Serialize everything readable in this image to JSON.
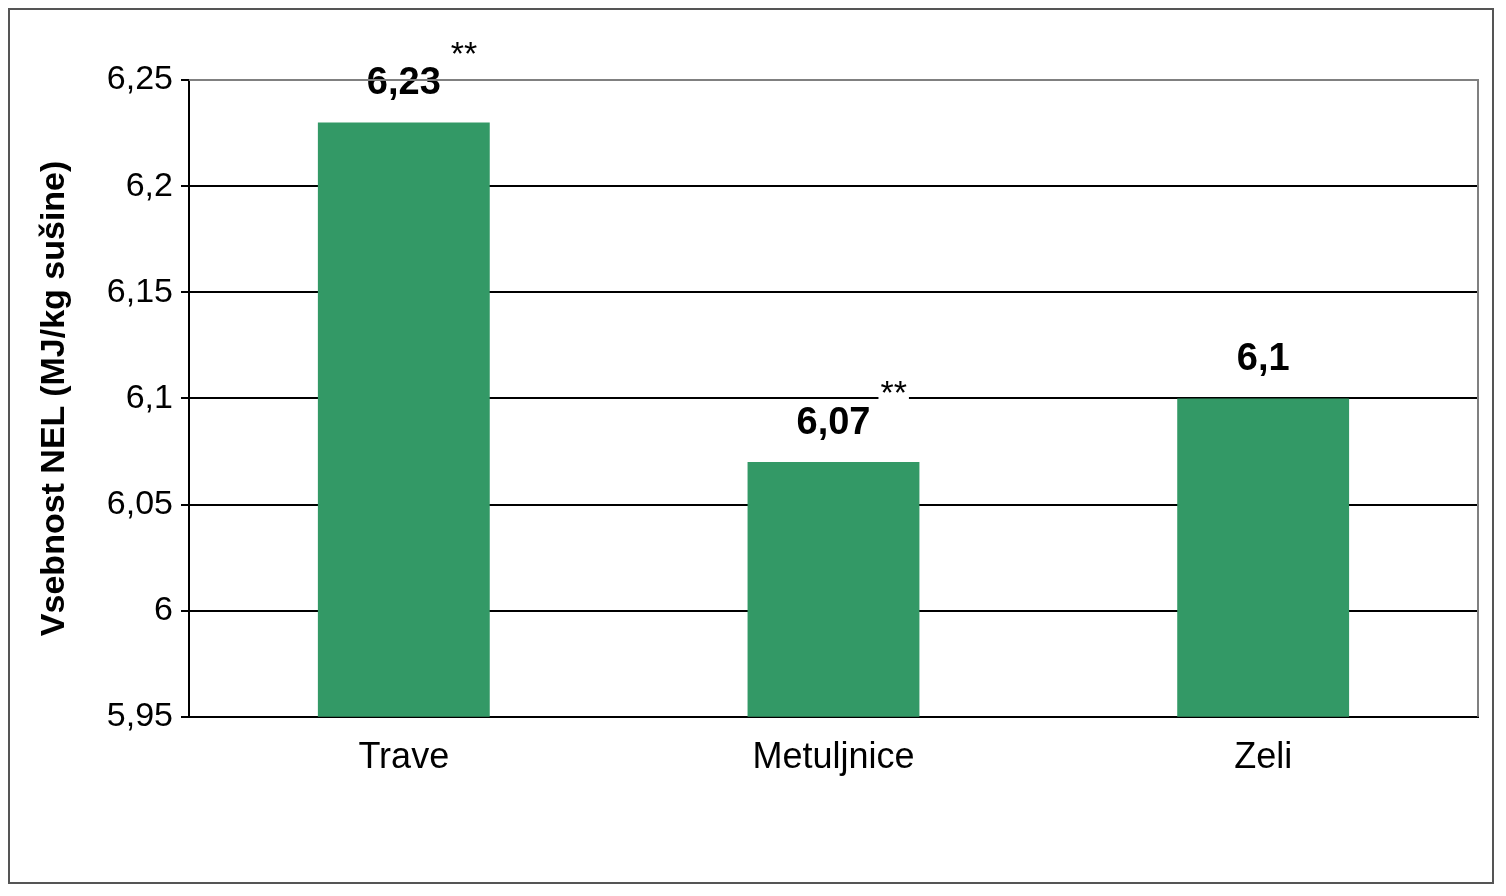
{
  "chart_data": {
    "type": "bar",
    "ylabel": "Vsebnost NEL (MJ/kg sušine)",
    "categories": [
      "Trave",
      "Metuljnice",
      "Zeli"
    ],
    "values": [
      6.23,
      6.07,
      6.1
    ],
    "color": "#339966",
    "value_labels": [
      "6,23",
      "6,07",
      "6,1"
    ],
    "ylim": [
      5.95,
      6.25
    ],
    "yticks": [
      {
        "value": 5.95,
        "label": "5,95"
      },
      {
        "value": 6,
        "label": "6"
      },
      {
        "value": 6.05,
        "label": "6,05"
      },
      {
        "value": 6.1,
        "label": "6,1"
      },
      {
        "value": 6.15,
        "label": "6,15"
      },
      {
        "value": 6.2,
        "label": "6,2"
      },
      {
        "value": 6.25,
        "label": "6,25"
      }
    ],
    "annotations": [
      {
        "text": "**",
        "x": "Trave",
        "y": 6.23
      },
      {
        "text": "**",
        "x": "Metuljnice",
        "y": 6.07
      }
    ],
    "grid": "y",
    "legend": false
  }
}
